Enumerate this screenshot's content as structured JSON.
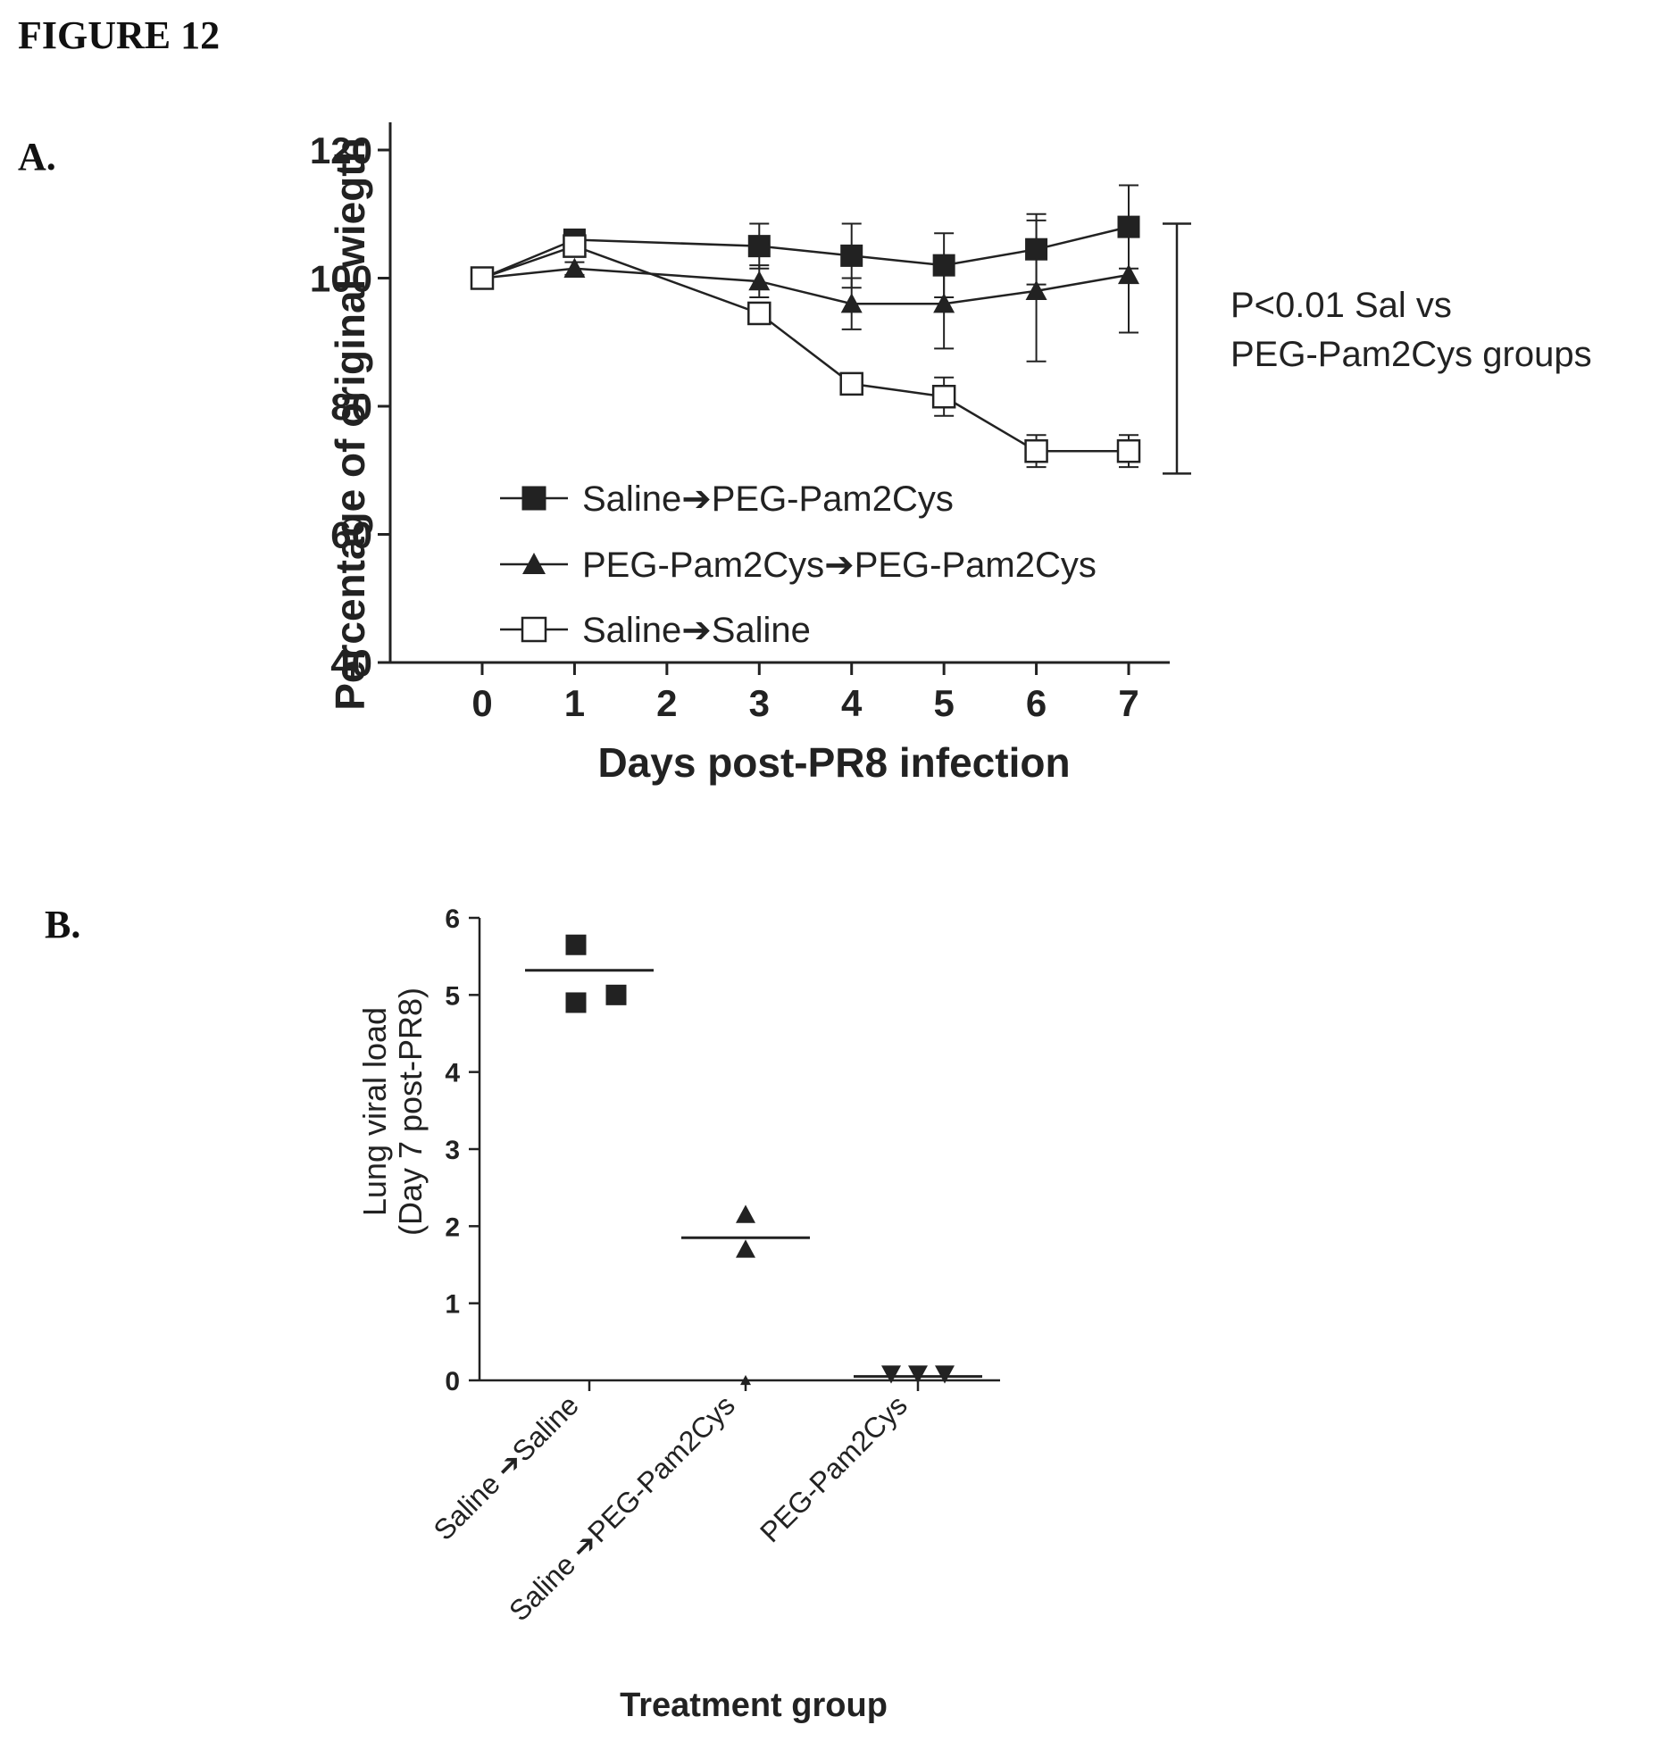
{
  "figure": {
    "title": "FIGURE 12",
    "panel_a_label": "A.",
    "panel_b_label": "B."
  },
  "colors": {
    "ink": "#222222",
    "background": "#ffffff"
  },
  "chart_data": [
    {
      "type": "line",
      "xlabel": "Days  post-PR8  infection",
      "ylabel": "Percentage of original wiegth",
      "xlim": [
        0,
        7.5
      ],
      "ylim": [
        40,
        125
      ],
      "xticks": [
        "0",
        "1",
        "2",
        "3",
        "4",
        "5",
        "6",
        "7"
      ],
      "yticks": [
        "40",
        "60",
        "80",
        "100",
        "120"
      ],
      "grid": false,
      "legend_position": "bottom-left",
      "series": [
        {
          "name": "Saline➔PEG-Pam2Cys",
          "marker": "filled-square",
          "x": [
            0,
            1,
            3,
            4,
            5,
            6,
            7
          ],
          "y": [
            100,
            106,
            105,
            103.5,
            102,
            104.5,
            108
          ],
          "err": [
            0,
            1,
            3.5,
            5,
            5,
            5.5,
            6.5
          ]
        },
        {
          "name": "PEG-Pam2Cys➔PEG-Pam2Cys",
          "marker": "filled-triangle",
          "x": [
            0,
            1,
            3,
            4,
            5,
            6,
            7
          ],
          "y": [
            100,
            101.5,
            99.5,
            96,
            96,
            98,
            100.5
          ],
          "err": [
            0,
            1,
            2.5,
            4,
            7,
            11,
            9
          ]
        },
        {
          "name": "Saline➔Saline",
          "marker": "open-square",
          "x": [
            0,
            1,
            3,
            4,
            5,
            6,
            7
          ],
          "y": [
            100,
            105,
            94.5,
            83.5,
            81.5,
            73,
            73
          ],
          "err": [
            0,
            1.5,
            1,
            1.5,
            3,
            2.5,
            2.5
          ]
        }
      ],
      "annotation": {
        "line1": "P<0.01 Sal vs",
        "line2": "PEG-Pam2Cys groups",
        "bracket_range": [
          69.5,
          108.5
        ]
      }
    },
    {
      "type": "scatter",
      "xlabel": "Treatment  group",
      "ylabel_line1": "Lung viral load",
      "ylabel_line2": "(Day 7 post-PR8)",
      "ylim": [
        0,
        6
      ],
      "yticks": [
        "0",
        "1",
        "2",
        "3",
        "4",
        "5",
        "6"
      ],
      "grid": false,
      "categories": [
        {
          "label_a": "Saline",
          "label_b": "Saline",
          "arrow": "➔"
        },
        {
          "label_a": "Saline",
          "label_b": "PEG-Pam2Cys",
          "arrow": "➔"
        },
        {
          "label_a": "PEG-Pam2Cys",
          "label_b": "",
          "arrow": ""
        }
      ],
      "groups": [
        {
          "marker": "filled-square",
          "values": [
            5.65,
            4.9,
            5.0
          ],
          "mean": 5.32
        },
        {
          "marker": "filled-triangle",
          "values": [
            2.15,
            1.7,
            0.0
          ],
          "mean": 1.85
        },
        {
          "marker": "filled-down-triangle",
          "values": [
            0.05,
            0.05,
            0.05
          ],
          "mean": 0.05
        }
      ]
    }
  ]
}
